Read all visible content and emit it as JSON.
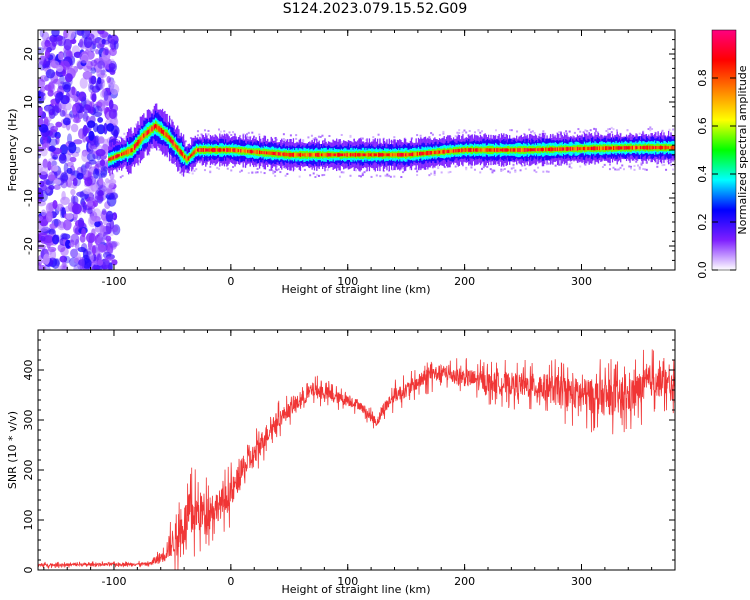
{
  "title": "S124.2023.079.15.52.G09",
  "chart_data": [
    {
      "type": "heatmap",
      "xlabel": "Height of straight line (km)",
      "ylabel": "Frequency (Hz)",
      "xlim": [
        -165,
        380
      ],
      "ylim": [
        -25,
        25
      ],
      "xticks": [
        -100,
        0,
        100,
        200,
        300
      ],
      "yticks": [
        -20,
        -10,
        0,
        10,
        20
      ],
      "colorbar": {
        "label": "Normalized spectral amplitude",
        "range": [
          0,
          1
        ],
        "ticks": [
          "0.0",
          "0.2",
          "0.4",
          "0.6",
          "0.8"
        ],
        "colormap": [
          "#ffffff",
          "#7e1fff",
          "#0000ff",
          "#00ffff",
          "#00ff00",
          "#ffff00",
          "#ff8000",
          "#ff0000",
          "#ff0080"
        ]
      },
      "ridge": {
        "x": [
          -105,
          -95,
          -85,
          -75,
          -65,
          -55,
          -45,
          -38,
          -30,
          0,
          50,
          100,
          150,
          200,
          250,
          300,
          350,
          380
        ],
        "freq": [
          -2,
          -1,
          0,
          3,
          5,
          3,
          0,
          -2,
          0,
          0,
          -1,
          -1,
          -1,
          0,
          0,
          0.3,
          0.5,
          0.5
        ]
      },
      "noise_region_x": [
        -165,
        -98
      ]
    },
    {
      "type": "line",
      "xlabel": "Height of straight line (km)",
      "ylabel": "SNR (10 * v/v)",
      "xlim": [
        -165,
        380
      ],
      "ylim": [
        0,
        480
      ],
      "xticks": [
        -100,
        0,
        100,
        200,
        300
      ],
      "yticks": [
        0,
        100,
        200,
        300,
        400
      ],
      "color": "#f03535",
      "envelope": {
        "x": [
          -165,
          -70,
          -60,
          -45,
          -35,
          -20,
          -10,
          0,
          10,
          20,
          30,
          40,
          50,
          60,
          70,
          80,
          90,
          100,
          110,
          120,
          125,
          130,
          140,
          150,
          160,
          170,
          180,
          200,
          220,
          250,
          280,
          300,
          320,
          340,
          360,
          370,
          380
        ],
        "values": [
          10,
          12,
          25,
          70,
          110,
          120,
          130,
          150,
          200,
          230,
          270,
          300,
          320,
          340,
          360,
          355,
          345,
          340,
          330,
          305,
          295,
          320,
          350,
          360,
          375,
          390,
          395,
          385,
          375,
          370,
          360,
          350,
          345,
          345,
          380,
          375,
          360
        ],
        "spread": [
          5,
          5,
          20,
          60,
          80,
          60,
          50,
          50,
          40,
          40,
          35,
          30,
          25,
          25,
          25,
          25,
          20,
          20,
          15,
          15,
          15,
          20,
          25,
          25,
          25,
          30,
          25,
          30,
          35,
          40,
          50,
          55,
          60,
          60,
          55,
          50,
          45
        ]
      }
    }
  ]
}
